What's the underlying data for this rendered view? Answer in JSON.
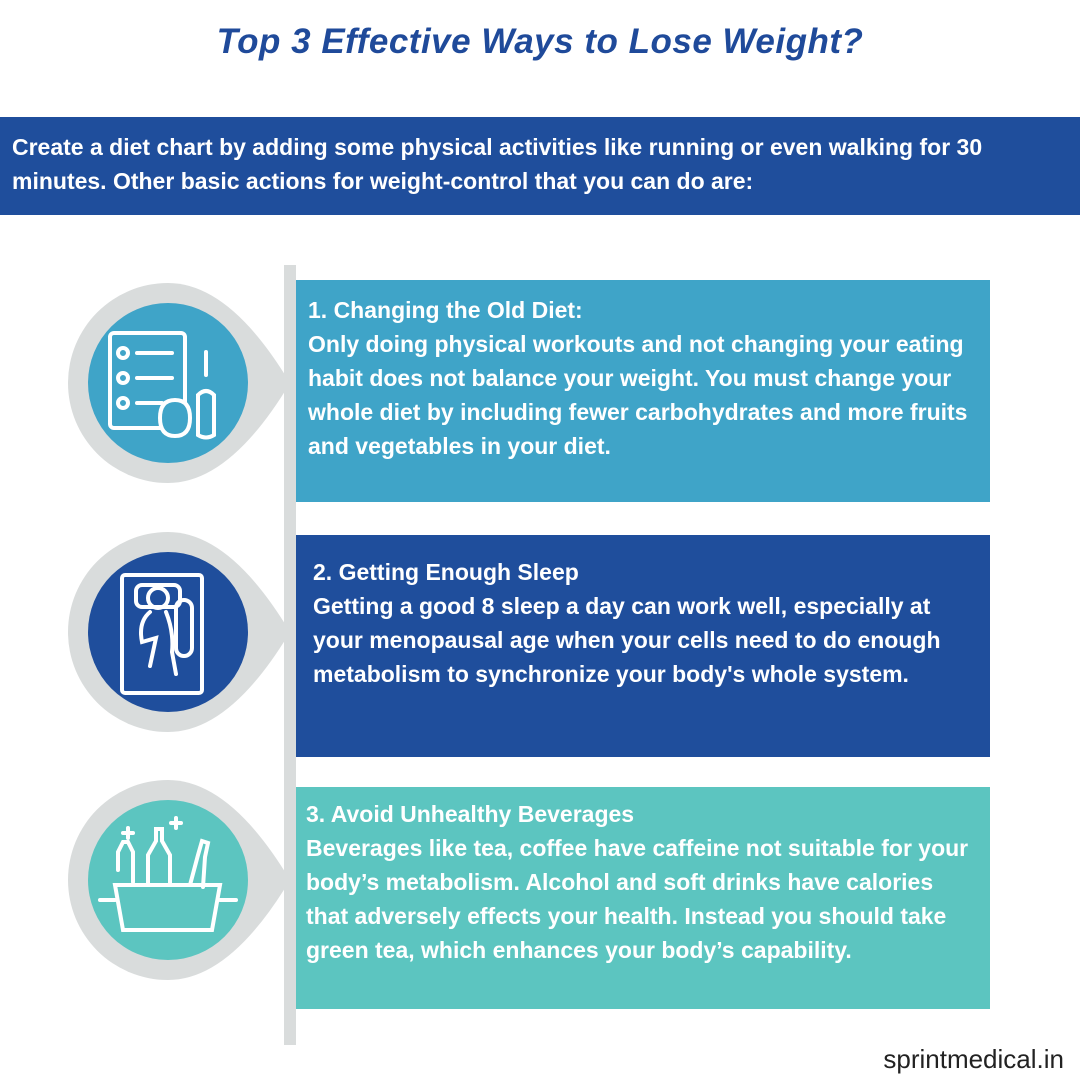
{
  "header": {
    "title": "Top 3 Effective Ways to Lose Weight?"
  },
  "intro": "Create a diet chart by adding some physical activities like running or even walking for 30 minutes. Other basic actions for weight-control that you can do are:",
  "items": [
    {
      "heading": "1. Changing the Old Diet:",
      "body": "Only doing physical workouts and not changing your eating habit does not balance your weight. You must change your whole diet by including fewer carbohydrates and more fruits and vegetables in your diet."
    },
    {
      "heading": "2. Getting Enough Sleep",
      "body": "Getting a good 8 sleep a day can work well, especially at your menopausal age when your cells need to do enough metabolism to synchronize your body's whole system."
    },
    {
      "heading": "3. Avoid Unhealthy Beverages",
      "body": "Beverages like tea, coffee have caffeine not suitable for your body’s metabolism. Alcohol and soft drinks have calories that adversely effects your health. Instead you should take green tea, which enhances your body’s capability."
    }
  ],
  "footer": "sprintmedical.in"
}
